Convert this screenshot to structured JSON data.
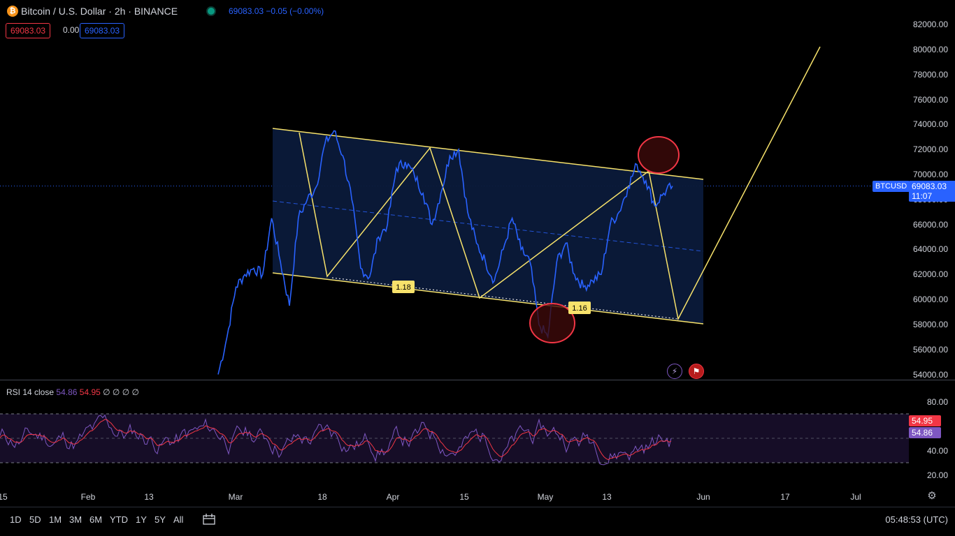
{
  "header": {
    "icon": "bitcoin-icon",
    "title": "Bitcoin / U.S. Dollar · 2h · BINANCE",
    "quote": "69083.03 −0.05 (−0.00%)",
    "sell": "69083.03",
    "spread": "0.00",
    "buy": "69083.03"
  },
  "price_axis": {
    "labels": [
      "82000.00",
      "80000.00",
      "78000.00",
      "76000.00",
      "74000.00",
      "72000.00",
      "70000.00",
      "68000.00",
      "66000.00",
      "64000.00",
      "62000.00",
      "60000.00",
      "58000.00",
      "56000.00",
      "54000.00"
    ],
    "values": [
      82000,
      80000,
      78000,
      76000,
      74000,
      72000,
      70000,
      68000,
      66000,
      64000,
      62000,
      60000,
      58000,
      56000,
      54000
    ]
  },
  "last_price": {
    "symbol": "BTCUSD",
    "value": "69083.03",
    "countdown": "11:07"
  },
  "time_axis": {
    "labels": [
      "15",
      "Feb",
      "13",
      "Mar",
      "18",
      "Apr",
      "15",
      "May",
      "13",
      "Jun",
      "17",
      "Jul"
    ]
  },
  "annotations": {
    "low1": "1.18",
    "low2": "1.16"
  },
  "rsi": {
    "title": "RSI 14 close",
    "value1": "54.86",
    "value2": "54.95",
    "extra": "∅ ∅ ∅ ∅",
    "axis_labels": [
      "80.00",
      "40.00",
      "20.00"
    ],
    "tag_ma": "54.95",
    "tag_rsi": "54.86"
  },
  "toolbar": {
    "ranges": [
      "1D",
      "5D",
      "1M",
      "3M",
      "6M",
      "YTD",
      "1Y",
      "5Y",
      "All"
    ],
    "clock": "05:48:53 (UTC)"
  },
  "colors": {
    "price_line": "#2962ff",
    "channel": "#f7e26b",
    "channel_fill": "#0b1a3a",
    "rsi_line": "#7e57c2",
    "rsi_ma": "#f23645",
    "circle": "#f23645"
  },
  "chart_data": {
    "type": "line",
    "title": "Bitcoin / U.S. Dollar · 2h · BINANCE",
    "ylim": [
      54000,
      82000
    ],
    "series": [
      {
        "name": "BTCUSD",
        "points": [
          [
            "Feb 26",
            54000
          ],
          [
            "Feb 27",
            57000
          ],
          [
            "Feb 28",
            61000
          ],
          [
            "Feb 29",
            62000
          ],
          [
            "Mar 1",
            62500
          ],
          [
            "Mar 3",
            62000
          ],
          [
            "Mar 4",
            66500
          ],
          [
            "Mar 5",
            63000
          ],
          [
            "Mar 5b",
            59500
          ],
          [
            "Mar 6",
            66500
          ],
          [
            "Mar 8",
            68000
          ],
          [
            "Mar 10",
            69000
          ],
          [
            "Mar 12",
            72500
          ],
          [
            "Mar 14",
            73500
          ],
          [
            "Mar 15",
            71500
          ],
          [
            "Mar 17",
            68000
          ],
          [
            "Mar 19",
            62500
          ],
          [
            "Mar 20",
            61800
          ],
          [
            "Mar 21",
            65000
          ],
          [
            "Mar 23",
            66000
          ],
          [
            "Mar 26",
            70500
          ],
          [
            "Mar 28",
            71000
          ],
          [
            "Mar 30",
            70000
          ],
          [
            "Apr 1",
            68500
          ],
          [
            "Apr 3",
            66000
          ],
          [
            "Apr 5",
            68500
          ],
          [
            "Apr 8",
            71500
          ],
          [
            "Apr 9",
            72000
          ],
          [
            "Apr 12",
            67000
          ],
          [
            "Apr 14",
            64500
          ],
          [
            "Apr 16",
            63000
          ],
          [
            "Apr 18",
            61500
          ],
          [
            "Apr 20",
            64000
          ],
          [
            "Apr 23",
            66500
          ],
          [
            "Apr 26",
            64000
          ],
          [
            "Apr 29",
            63000
          ],
          [
            "May 1",
            58000
          ],
          [
            "May 2",
            57000
          ],
          [
            "May 4",
            63000
          ],
          [
            "May 6",
            64500
          ],
          [
            "May 8",
            62000
          ],
          [
            "May 10",
            61000
          ],
          [
            "May 12",
            61500
          ],
          [
            "May 14",
            62000
          ],
          [
            "May 16",
            66000
          ],
          [
            "May 18",
            67000
          ],
          [
            "May 20",
            69000
          ],
          [
            "May 21",
            70800
          ],
          [
            "May 22",
            69500
          ],
          [
            "May 23",
            67500
          ],
          [
            "May 24",
            68500
          ],
          [
            "May 26",
            69083.03
          ]
        ]
      }
    ],
    "channel": {
      "upper": [
        [
          "Mar 6",
          73700
        ],
        [
          "May 31",
          69600
        ]
      ],
      "lower": [
        [
          "Mar 6",
          62100
        ],
        [
          "May 31",
          58100
        ]
      ]
    },
    "projection": [
      [
        "May 21",
        70200
      ],
      [
        "May 28",
        58500
      ],
      [
        "Jun 26",
        80200
      ]
    ]
  }
}
